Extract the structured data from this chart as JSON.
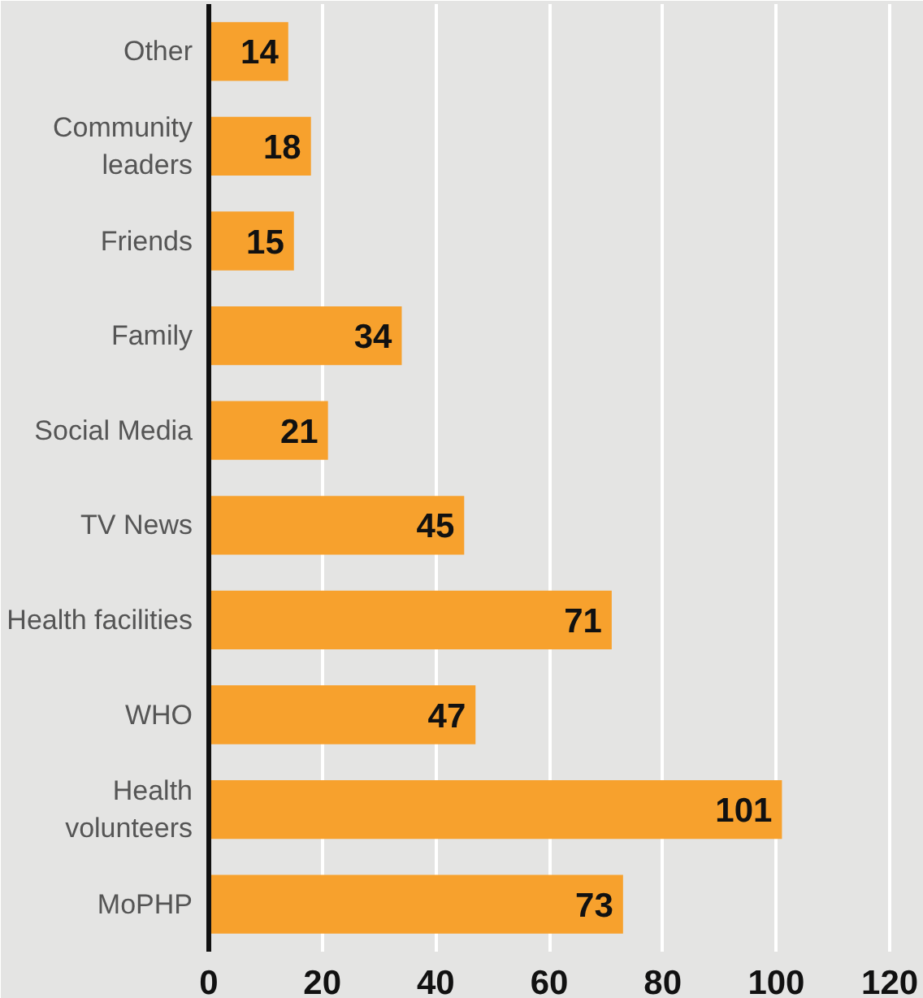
{
  "chart_data": {
    "type": "bar",
    "orientation": "horizontal",
    "categories": [
      "Other",
      "Community\nleaders",
      "Friends",
      "Family",
      "Social Media",
      "TV News",
      "Health facilities",
      "WHO",
      "Health\nvolunteers",
      "MoPHP"
    ],
    "values": [
      14,
      18,
      15,
      34,
      21,
      45,
      71,
      47,
      101,
      73
    ],
    "color": "#f7a12d",
    "xlim": [
      0,
      126
    ],
    "xticks": [
      0,
      20,
      40,
      60,
      80,
      100,
      120
    ],
    "grid": "x",
    "data_labels": true
  }
}
